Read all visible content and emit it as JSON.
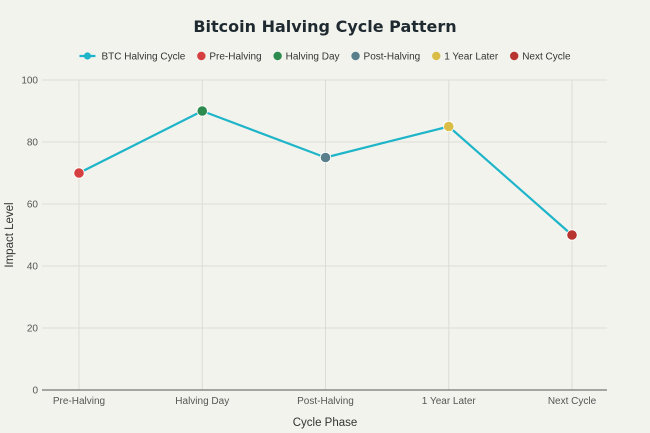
{
  "chart_data": {
    "type": "line",
    "title": "Bitcoin Halving Cycle Pattern",
    "xlabel": "Cycle Phase",
    "ylabel": "Impact Level",
    "categories": [
      "Pre-Halving",
      "Halving Day",
      "Post-Halving",
      "1 Year Later",
      "Next Cycle"
    ],
    "ylim": [
      0,
      100
    ],
    "yticks": [
      0,
      20,
      40,
      60,
      80,
      100
    ],
    "grid": true,
    "legend_position": "top-center",
    "series": [
      {
        "name": "BTC Halving Cycle",
        "color": "#1fb5c9",
        "values": [
          70,
          90,
          75,
          85,
          50
        ]
      }
    ],
    "points": [
      {
        "name": "Pre-Halving",
        "value": 70,
        "color": "#d63f3f"
      },
      {
        "name": "Halving Day",
        "value": 90,
        "color": "#2e8b4f"
      },
      {
        "name": "Post-Halving",
        "value": 75,
        "color": "#5a7f8c"
      },
      {
        "name": "1 Year Later",
        "value": 85,
        "color": "#d9bd47"
      },
      {
        "name": "Next Cycle",
        "value": 50,
        "color": "#b8342f"
      }
    ]
  }
}
